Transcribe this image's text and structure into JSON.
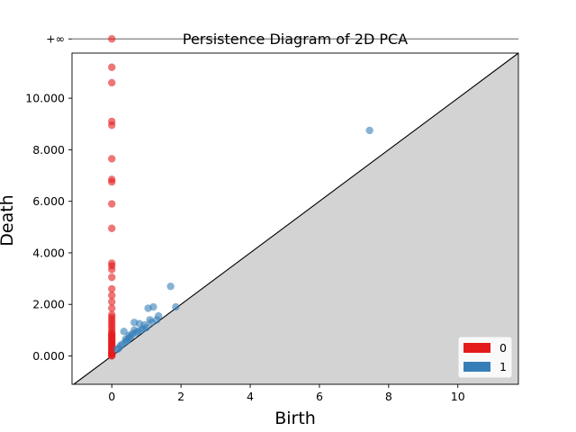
{
  "chart_data": {
    "type": "scatter",
    "title": "Persistence Diagram of 2D PCA",
    "xlabel": "Birth",
    "ylabel": "Death",
    "xlim": [
      -1.15,
      11.75
    ],
    "ylim": [
      -1.1,
      11.75
    ],
    "x_ticks": [
      0,
      2,
      4,
      6,
      8,
      10
    ],
    "x_tick_labels": [
      "0",
      "2",
      "4",
      "6",
      "8",
      "10"
    ],
    "y_ticks": [
      0,
      2,
      4,
      6,
      8,
      10
    ],
    "y_tick_labels": [
      "0.000",
      "2.000",
      "4.000",
      "6.000",
      "8.000",
      "10.000"
    ],
    "infinity_value": 12.3,
    "infinity_label": "+∞",
    "diagonal": true,
    "legend": {
      "position": "lower-right",
      "entries": [
        "0",
        "1"
      ]
    },
    "colors": {
      "dim0": "#e41a1c",
      "dim1": "#377eb8",
      "shade": "#d3d3d3",
      "inf_line": "#808080"
    },
    "series": [
      {
        "name": "0",
        "color": "#e41a1c",
        "x": [
          0,
          0,
          0,
          0,
          0,
          0,
          0,
          0,
          0,
          0,
          0,
          0,
          0,
          0,
          0,
          0,
          0,
          0,
          0,
          0,
          0,
          0,
          0,
          0,
          0,
          0,
          0,
          0,
          0,
          0,
          0,
          0,
          0,
          0,
          0,
          0,
          0,
          0,
          0,
          0,
          0,
          0,
          0,
          0,
          0,
          0
        ],
        "y": [
          12.3,
          11.2,
          10.6,
          9.1,
          8.95,
          7.65,
          6.85,
          6.75,
          5.9,
          4.95,
          3.6,
          3.5,
          3.35,
          3.05,
          2.6,
          2.35,
          2.1,
          1.85,
          1.6,
          1.5,
          1.4,
          1.3,
          1.2,
          1.1,
          1.0,
          0.9,
          0.85,
          0.8,
          0.75,
          0.7,
          0.65,
          0.6,
          0.55,
          0.5,
          0.45,
          0.4,
          0.35,
          0.3,
          0.25,
          0.2,
          0.15,
          0.12,
          0.08,
          0.05,
          0.02,
          0.0
        ]
      },
      {
        "name": "1",
        "color": "#377eb8",
        "x": [
          7.45,
          1.7,
          1.2,
          1.05,
          1.85,
          1.35,
          0.65,
          0.35,
          0.8,
          1.0,
          1.1,
          0.9,
          0.75,
          0.6,
          0.5,
          0.45,
          0.4,
          0.3,
          0.25,
          0.2,
          0.15,
          0.55,
          0.7,
          0.85,
          0.95,
          1.15,
          1.3,
          0.5,
          0.65,
          0.4
        ],
        "y": [
          8.75,
          2.7,
          1.9,
          1.85,
          1.9,
          1.55,
          1.3,
          0.95,
          1.25,
          1.1,
          1.4,
          1.05,
          0.95,
          0.85,
          0.7,
          0.6,
          0.55,
          0.45,
          0.4,
          0.3,
          0.25,
          0.75,
          0.9,
          1.0,
          1.2,
          1.3,
          1.4,
          0.8,
          1.0,
          0.65
        ]
      }
    ]
  }
}
